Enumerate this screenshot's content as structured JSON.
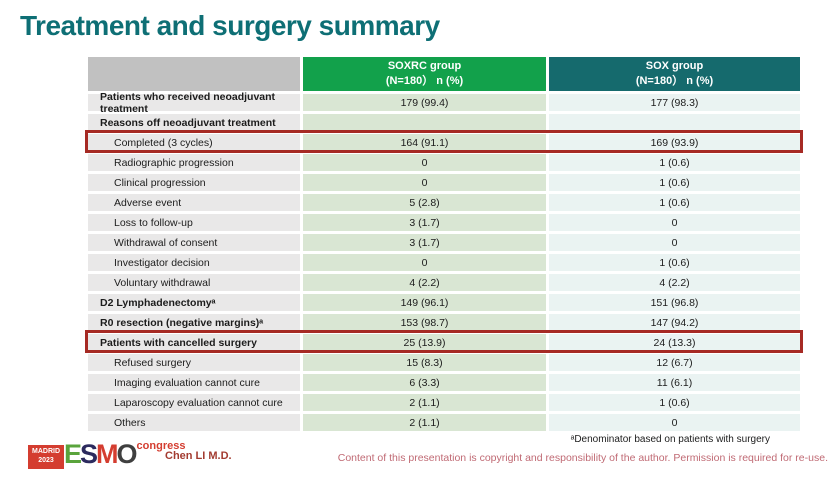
{
  "title": "Treatment and surgery summary",
  "table": {
    "columns": [
      {
        "line1": "",
        "line2": ""
      },
      {
        "line1": "SOXRC group",
        "line2": "(N=180）  n (%)"
      },
      {
        "line1": "SOX group",
        "line2": "(N=180）  n (%)"
      }
    ],
    "rows": [
      {
        "label": "Patients who received neoadjuvant treatment",
        "bold": true,
        "indent": false,
        "highlight": false,
        "soxrc": "179 (99.4)",
        "sox": "177 (98.3)"
      },
      {
        "label": "Reasons off neoadjuvant treatment",
        "bold": true,
        "indent": false,
        "highlight": false,
        "soxrc": "",
        "sox": ""
      },
      {
        "label": "Completed (3 cycles)",
        "bold": false,
        "indent": true,
        "highlight": true,
        "soxrc": "164 (91.1)",
        "sox": "169 (93.9)"
      },
      {
        "label": "Radiographic progression",
        "bold": false,
        "indent": true,
        "highlight": false,
        "soxrc": "0",
        "sox": "1 (0.6)"
      },
      {
        "label": "Clinical progression",
        "bold": false,
        "indent": true,
        "highlight": false,
        "soxrc": "0",
        "sox": "1 (0.6)"
      },
      {
        "label": "Adverse event",
        "bold": false,
        "indent": true,
        "highlight": false,
        "soxrc": "5 (2.8)",
        "sox": "1 (0.6)"
      },
      {
        "label": "Loss to follow-up",
        "bold": false,
        "indent": true,
        "highlight": false,
        "soxrc": "3 (1.7)",
        "sox": "0"
      },
      {
        "label": "Withdrawal of consent",
        "bold": false,
        "indent": true,
        "highlight": false,
        "soxrc": "3 (1.7)",
        "sox": "0"
      },
      {
        "label": "Investigator decision",
        "bold": false,
        "indent": true,
        "highlight": false,
        "soxrc": "0",
        "sox": "1 (0.6)"
      },
      {
        "label": "Voluntary withdrawal",
        "bold": false,
        "indent": true,
        "highlight": false,
        "soxrc": "4 (2.2)",
        "sox": "4 (2.2)"
      },
      {
        "label": "D2 Lymphadenectomyᵃ",
        "bold": true,
        "indent": false,
        "highlight": false,
        "soxrc": "149 (96.1)",
        "sox": "151 (96.8)"
      },
      {
        "label": "R0 resection (negative margins)ᵃ",
        "bold": true,
        "indent": false,
        "highlight": false,
        "soxrc": "153 (98.7)",
        "sox": "147 (94.2)"
      },
      {
        "label": "Patients with cancelled surgery",
        "bold": true,
        "indent": false,
        "highlight": true,
        "soxrc": "25 (13.9)",
        "sox": "24 (13.3)"
      },
      {
        "label": "Refused surgery",
        "bold": false,
        "indent": true,
        "highlight": false,
        "soxrc": "15 (8.3)",
        "sox": "12 (6.7)"
      },
      {
        "label": "Imaging evaluation cannot cure",
        "bold": false,
        "indent": true,
        "highlight": false,
        "soxrc": "6 (3.3)",
        "sox": "11 (6.1)"
      },
      {
        "label": "Laparoscopy evaluation cannot cure",
        "bold": false,
        "indent": true,
        "highlight": false,
        "soxrc": "2 (1.1)",
        "sox": "1 (0.6)"
      },
      {
        "label": "Others",
        "bold": false,
        "indent": true,
        "highlight": false,
        "soxrc": "2 (1.1)",
        "sox": "0"
      }
    ]
  },
  "footer": {
    "logo": {
      "badge_line1": "MADRID",
      "badge_line2": "2023",
      "letters": [
        {
          "char": "E",
          "color": "#5aa43c"
        },
        {
          "char": "S",
          "color": "#2c2a5e"
        },
        {
          "char": "M",
          "color": "#d43d30"
        },
        {
          "char": "O",
          "color": "#3f3f3f"
        }
      ],
      "congress": "congress"
    },
    "author": "Chen LI M.D.",
    "footnote": "ᵃDenominator based on patients with surgery",
    "copyright": "Content of this presentation is copyright and responsibility of the author. Permission is required for re-use."
  },
  "colors": {
    "title": "#0e6f75",
    "header_soxrc": "#12a14b",
    "header_sox": "#156a6d",
    "header_empty": "#c1c1c1",
    "label_cell_bg": "#e9e8e8",
    "soxrc_cell_bg": "#d9e6d3",
    "sox_cell_bg": "#eaf3f2",
    "highlight_border": "#a62a24",
    "author_text": "#a33b30",
    "copyright_text": "#c06a74"
  }
}
